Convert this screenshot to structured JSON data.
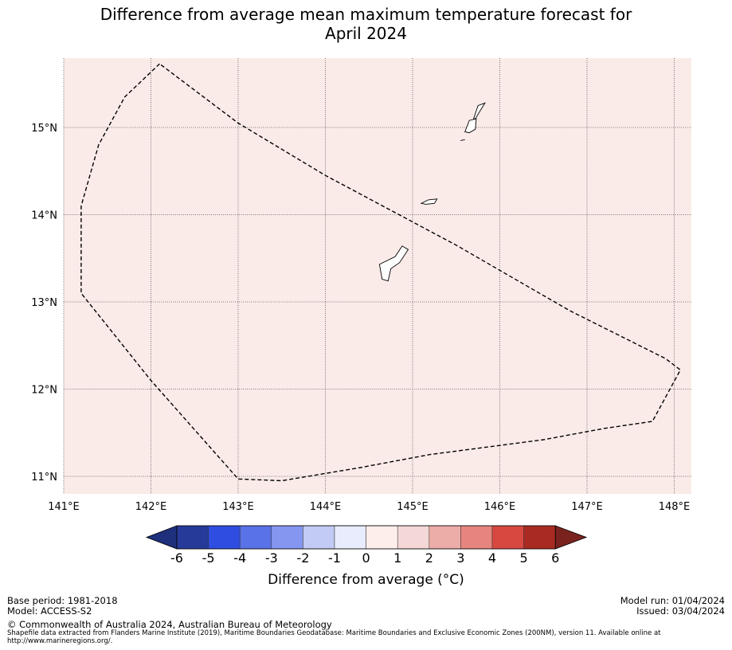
{
  "title_line1": "Difference from average mean maximum temperature forecast for",
  "title_line2": "April 2024",
  "map": {
    "lon_range": [
      141.0,
      148.2
    ],
    "lat_range": [
      10.8,
      15.8
    ],
    "lon_ticks": [
      {
        "v": 141,
        "label": "141°E"
      },
      {
        "v": 142,
        "label": "142°E"
      },
      {
        "v": 143,
        "label": "143°E"
      },
      {
        "v": 144,
        "label": "144°E"
      },
      {
        "v": 145,
        "label": "145°E"
      },
      {
        "v": 146,
        "label": "146°E"
      },
      {
        "v": 147,
        "label": "147°E"
      },
      {
        "v": 148,
        "label": "148°E"
      }
    ],
    "lat_ticks": [
      {
        "v": 15,
        "label": "15°N"
      },
      {
        "v": 14,
        "label": "14°N"
      },
      {
        "v": 13,
        "label": "13°N"
      },
      {
        "v": 12,
        "label": "12°N"
      },
      {
        "v": 11,
        "label": "11°N"
      }
    ],
    "fill_color": "#fbebe8",
    "eez_boundary": [
      [
        142.1,
        15.73
      ],
      [
        141.7,
        15.35
      ],
      [
        141.4,
        14.8
      ],
      [
        141.2,
        14.1
      ],
      [
        141.2,
        13.1
      ],
      [
        142.0,
        12.1
      ],
      [
        143.0,
        10.97
      ],
      [
        143.5,
        10.95
      ],
      [
        144.4,
        11.1
      ],
      [
        145.2,
        11.25
      ],
      [
        146.5,
        11.42
      ],
      [
        147.2,
        11.55
      ],
      [
        147.75,
        11.63
      ],
      [
        148.07,
        12.22
      ],
      [
        147.9,
        12.35
      ],
      [
        146.8,
        12.9
      ],
      [
        145.5,
        13.65
      ],
      [
        144.0,
        14.45
      ],
      [
        143.0,
        15.05
      ],
      [
        142.1,
        15.73
      ]
    ],
    "islands": [
      [
        [
          144.62,
          13.43
        ],
        [
          144.8,
          13.52
        ],
        [
          144.88,
          13.64
        ],
        [
          144.95,
          13.6
        ],
        [
          144.85,
          13.45
        ],
        [
          144.75,
          13.38
        ],
        [
          144.72,
          13.24
        ],
        [
          144.65,
          13.26
        ],
        [
          144.62,
          13.43
        ]
      ],
      [
        [
          145.1,
          14.13
        ],
        [
          145.18,
          14.17
        ],
        [
          145.28,
          14.18
        ],
        [
          145.25,
          14.13
        ],
        [
          145.15,
          14.12
        ],
        [
          145.1,
          14.13
        ]
      ],
      [
        [
          145.55,
          14.85
        ],
        [
          145.6,
          14.86
        ]
      ],
      [
        [
          145.6,
          14.95
        ],
        [
          145.65,
          15.08
        ],
        [
          145.73,
          15.1
        ],
        [
          145.72,
          14.98
        ],
        [
          145.65,
          14.94
        ],
        [
          145.6,
          14.95
        ]
      ],
      [
        [
          145.7,
          15.1
        ],
        [
          145.75,
          15.25
        ],
        [
          145.83,
          15.28
        ],
        [
          145.78,
          15.2
        ],
        [
          145.72,
          15.1
        ],
        [
          145.7,
          15.1
        ]
      ]
    ]
  },
  "colorbar": {
    "ticks": [
      "-6",
      "-5",
      "-4",
      "-3",
      "-2",
      "-1",
      "0",
      "1",
      "2",
      "3",
      "4",
      "5",
      "6"
    ],
    "colors": [
      "#263a99",
      "#2f4de0",
      "#5a72e8",
      "#8496ef",
      "#c2cbf5",
      "#e8ecfc",
      "#fdeeeb",
      "#f3d8d7",
      "#ecaca8",
      "#e6857f",
      "#d84840",
      "#a92a22"
    ],
    "under_color": "#1e2f7c",
    "over_color": "#7a221e",
    "label": "Difference from average ($^\\circ$C)",
    "label_display": "Difference from average (°C)"
  },
  "footer": {
    "base_period": "Base period: 1981-2018",
    "model": "Model: ACCESS-S2",
    "model_run": "Model run: 01/04/2024",
    "issued": "Issued: 03/04/2024",
    "copyright": "© Commonwealth of Australia 2024, Australian Bureau of Meteorology",
    "source": "Shapefile data extracted from Flanders Marine Institute (2019), Maritime Boundaries Geodatabase: Maritime Boundaries and Exclusive Economic Zones (200NM), version 11. Available online at http://www.marineregions.org/."
  }
}
